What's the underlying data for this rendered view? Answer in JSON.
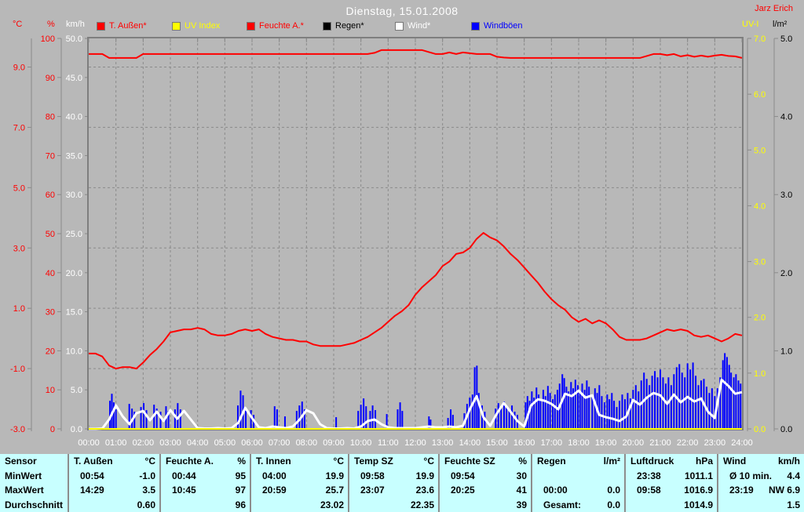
{
  "header": {
    "title": "Dienstag, 15.01.2008",
    "station": "Jarz Erich"
  },
  "legend": {
    "items": [
      {
        "label": "T. Außen*",
        "color": "#ff0000"
      },
      {
        "label": "UV Index",
        "color": "#ffff00"
      },
      {
        "label": "Feuchte A.*",
        "color": "#ff0000"
      },
      {
        "label": "Regen*",
        "color": "#000000"
      },
      {
        "label": "Wind*",
        "color": "#ffffff"
      },
      {
        "label": "Windböen",
        "color": "#0000ff"
      }
    ]
  },
  "chart_data": {
    "type": "line",
    "title": "Dienstag, 15.01.2008",
    "x_range_hours": [
      0,
      24
    ],
    "x_labels": [
      "00:00",
      "01:00",
      "02:00",
      "03:00",
      "04:00",
      "05:00",
      "06:00",
      "07:00",
      "08:00",
      "09:00",
      "10:00",
      "11:00",
      "12:00",
      "13:00",
      "14:00",
      "15:00",
      "16:00",
      "17:00",
      "18:00",
      "19:00",
      "20:00",
      "21:00",
      "22:00",
      "23:00",
      "24:00"
    ],
    "grid": "dashed-gray-hourly-and-2degC",
    "axes": {
      "temp": {
        "unit": "°C",
        "color": "#ff0000",
        "min": -3,
        "max": 9,
        "ticks": [
          "-3.0",
          "-1.0",
          "1.0",
          "3.0",
          "5.0",
          "7.0",
          "9.0"
        ]
      },
      "hum": {
        "unit": "%",
        "color": "#ff0000",
        "min": 0,
        "max": 100,
        "ticks": [
          "0",
          "10",
          "20",
          "30",
          "40",
          "50",
          "60",
          "70",
          "80",
          "90",
          "100"
        ]
      },
      "wind": {
        "unit": "km/h",
        "color": "#ffffff",
        "min": 0,
        "max": 50,
        "ticks": [
          "0.0",
          "5.0",
          "10.0",
          "15.0",
          "20.0",
          "25.0",
          "30.0",
          "35.0",
          "40.0",
          "45.0",
          "50.0"
        ]
      },
      "uv": {
        "unit": "UV-I",
        "color": "#ffff00",
        "min": 0,
        "max": 7,
        "ticks": [
          "0.0",
          "1.0",
          "2.0",
          "3.0",
          "4.0",
          "5.0",
          "6.0",
          "7.0"
        ]
      },
      "rain": {
        "unit": "l/m²",
        "color": "#000000",
        "min": 0,
        "max": 5,
        "ticks": [
          "0.0",
          "1.0",
          "2.0",
          "3.0",
          "4.0",
          "5.0"
        ]
      }
    },
    "series": [
      {
        "label": "Regen*",
        "axis": "rain",
        "color": "#000000",
        "step_h": 24,
        "values": [
          0,
          0
        ]
      },
      {
        "label": "Windböen",
        "axis": "wind",
        "color": "#0000ff",
        "style": "bars",
        "points": [
          [
            0.78,
            3.6
          ],
          [
            0.85,
            4.5
          ],
          [
            0.92,
            3.4
          ],
          [
            1.0,
            2.5
          ],
          [
            1.49,
            3.2
          ],
          [
            1.59,
            2.6
          ],
          [
            1.68,
            2.2
          ],
          [
            1.92,
            2.8
          ],
          [
            2.02,
            3.3
          ],
          [
            2.12,
            2.4
          ],
          [
            2.4,
            3.1
          ],
          [
            2.5,
            2.6
          ],
          [
            2.64,
            2.2
          ],
          [
            2.84,
            2.9
          ],
          [
            2.93,
            2.3
          ],
          [
            3.17,
            2.5
          ],
          [
            3.27,
            3.3
          ],
          [
            3.37,
            2.5
          ],
          [
            5.48,
            3.0
          ],
          [
            5.58,
            4.9
          ],
          [
            5.67,
            4.3
          ],
          [
            5.77,
            2.5
          ],
          [
            5.96,
            2.4
          ],
          [
            6.06,
            1.8
          ],
          [
            6.83,
            2.9
          ],
          [
            6.92,
            2.5
          ],
          [
            7.21,
            1.6
          ],
          [
            7.64,
            2.3
          ],
          [
            7.74,
            3.0
          ],
          [
            7.84,
            3.5
          ],
          [
            7.93,
            2.5
          ],
          [
            9.09,
            1.5
          ],
          [
            9.9,
            2.3
          ],
          [
            10.0,
            3.1
          ],
          [
            10.1,
            3.9
          ],
          [
            10.19,
            2.9
          ],
          [
            10.34,
            2.3
          ],
          [
            10.43,
            3.0
          ],
          [
            10.53,
            2.4
          ],
          [
            10.95,
            1.9
          ],
          [
            11.35,
            2.5
          ],
          [
            11.44,
            3.4
          ],
          [
            11.52,
            2.3
          ],
          [
            12.5,
            1.6
          ],
          [
            12.56,
            1.2
          ],
          [
            13.2,
            1.4
          ],
          [
            13.3,
            2.5
          ],
          [
            13.38,
            1.8
          ],
          [
            13.8,
            2.0
          ],
          [
            13.9,
            3.2
          ],
          [
            14.0,
            4.0
          ],
          [
            14.1,
            4.4
          ],
          [
            14.18,
            7.9
          ],
          [
            14.26,
            8.1
          ],
          [
            14.33,
            4.6
          ],
          [
            14.45,
            3.0
          ],
          [
            14.55,
            2.2
          ],
          [
            14.95,
            2.6
          ],
          [
            15.05,
            3.3
          ],
          [
            15.15,
            2.8
          ],
          [
            15.26,
            3.5
          ],
          [
            15.35,
            2.9
          ],
          [
            15.45,
            2.4
          ],
          [
            15.55,
            3.0
          ],
          [
            15.65,
            2.2
          ],
          [
            15.75,
            1.8
          ],
          [
            16.05,
            3.4
          ],
          [
            16.12,
            4.2
          ],
          [
            16.2,
            3.6
          ],
          [
            16.28,
            4.8
          ],
          [
            16.36,
            4.0
          ],
          [
            16.45,
            5.3
          ],
          [
            16.53,
            4.4
          ],
          [
            16.6,
            3.8
          ],
          [
            16.7,
            5.0
          ],
          [
            16.78,
            4.2
          ],
          [
            16.87,
            5.5
          ],
          [
            16.95,
            4.6
          ],
          [
            17.05,
            3.8
          ],
          [
            17.13,
            4.4
          ],
          [
            17.22,
            5.0
          ],
          [
            17.3,
            5.8
          ],
          [
            17.4,
            7.0
          ],
          [
            17.47,
            6.5
          ],
          [
            17.55,
            5.4
          ],
          [
            17.63,
            4.8
          ],
          [
            17.72,
            6.0
          ],
          [
            17.8,
            5.2
          ],
          [
            17.88,
            6.3
          ],
          [
            17.97,
            5.6
          ],
          [
            18.05,
            4.8
          ],
          [
            18.13,
            5.8
          ],
          [
            18.22,
            5.0
          ],
          [
            18.3,
            6.2
          ],
          [
            18.38,
            5.4
          ],
          [
            18.5,
            4.4
          ],
          [
            18.6,
            5.2
          ],
          [
            18.68,
            4.6
          ],
          [
            18.76,
            5.6
          ],
          [
            18.85,
            4.2
          ],
          [
            18.95,
            3.4
          ],
          [
            19.05,
            4.4
          ],
          [
            19.13,
            3.8
          ],
          [
            19.22,
            4.6
          ],
          [
            19.3,
            3.6
          ],
          [
            19.4,
            2.8
          ],
          [
            19.5,
            3.6
          ],
          [
            19.6,
            4.4
          ],
          [
            19.7,
            3.8
          ],
          [
            19.8,
            4.6
          ],
          [
            19.9,
            3.9
          ],
          [
            20.0,
            5.0
          ],
          [
            20.1,
            5.6
          ],
          [
            20.2,
            4.8
          ],
          [
            20.3,
            6.2
          ],
          [
            20.4,
            7.2
          ],
          [
            20.5,
            6.4
          ],
          [
            20.6,
            5.6
          ],
          [
            20.7,
            6.8
          ],
          [
            20.8,
            7.4
          ],
          [
            20.9,
            6.6
          ],
          [
            21.0,
            7.6
          ],
          [
            21.1,
            6.6
          ],
          [
            21.2,
            5.8
          ],
          [
            21.3,
            6.6
          ],
          [
            21.4,
            5.6
          ],
          [
            21.5,
            7.0
          ],
          [
            21.6,
            7.9
          ],
          [
            21.7,
            8.3
          ],
          [
            21.8,
            7.2
          ],
          [
            21.9,
            6.6
          ],
          [
            22.0,
            8.4
          ],
          [
            22.1,
            7.6
          ],
          [
            22.2,
            8.5
          ],
          [
            22.3,
            6.8
          ],
          [
            22.4,
            5.6
          ],
          [
            22.5,
            6.2
          ],
          [
            22.6,
            6.4
          ],
          [
            22.7,
            5.4
          ],
          [
            22.8,
            4.6
          ],
          [
            22.9,
            5.2
          ],
          [
            23.0,
            4.2
          ],
          [
            23.1,
            5.2
          ],
          [
            23.2,
            6.6
          ],
          [
            23.3,
            8.8
          ],
          [
            23.37,
            9.7
          ],
          [
            23.45,
            9.2
          ],
          [
            23.53,
            8.2
          ],
          [
            23.6,
            7.2
          ],
          [
            23.7,
            6.6
          ],
          [
            23.78,
            7.0
          ],
          [
            23.87,
            6.2
          ],
          [
            23.95,
            5.8
          ]
        ]
      },
      {
        "label": "Wind*",
        "axis": "wind",
        "color": "#ffffff",
        "step_h": 0.25,
        "values": [
          0,
          0,
          0.05,
          1.2,
          3.0,
          1.6,
          0.6,
          2.0,
          2.3,
          1.1,
          2.2,
          1.0,
          2.4,
          1.3,
          2.3,
          1.2,
          0.1,
          0.05,
          0.05,
          0.1,
          0.05,
          0.1,
          0.8,
          2.7,
          1.4,
          0.2,
          0.1,
          0.3,
          0.2,
          0.1,
          0.3,
          1.2,
          2.4,
          2.0,
          0.6,
          0.1,
          0.05,
          0.05,
          0.1,
          0.05,
          0.3,
          1.0,
          1.2,
          0.6,
          0.2,
          0.1,
          0.1,
          0.1,
          0.1,
          0.2,
          0.3,
          0.2,
          0.2,
          0.3,
          0.2,
          0.4,
          2.5,
          4.2,
          1.5,
          0.4,
          2.0,
          3.3,
          2.2,
          1.0,
          0.3,
          3.0,
          3.8,
          3.6,
          3.2,
          2.5,
          4.5,
          4.2,
          4.9,
          4.0,
          4.3,
          1.8,
          1.5,
          1.3,
          1.0,
          1.6,
          3.7,
          3.1,
          4.0,
          4.6,
          4.3,
          3.2,
          4.4,
          3.4,
          4.1,
          3.5,
          3.9,
          2.2,
          1.4,
          6.3,
          5.5,
          4.5,
          4.7
        ]
      },
      {
        "label": "UV Index",
        "axis": "uv",
        "color": "#ffff00",
        "step_h": 24,
        "values": [
          0,
          0
        ]
      },
      {
        "label": "T. Außen*",
        "axis": "temp",
        "color": "#ff0000",
        "step_h": 0.25,
        "values": [
          -0.5,
          -0.5,
          -0.6,
          -0.9,
          -1.0,
          -0.95,
          -0.95,
          -1.0,
          -0.8,
          -0.55,
          -0.35,
          -0.1,
          0.2,
          0.25,
          0.3,
          0.3,
          0.35,
          0.3,
          0.15,
          0.1,
          0.1,
          0.15,
          0.25,
          0.3,
          0.25,
          0.3,
          0.15,
          0.05,
          0.0,
          -0.05,
          -0.05,
          -0.1,
          -0.1,
          -0.2,
          -0.25,
          -0.25,
          -0.25,
          -0.25,
          -0.2,
          -0.15,
          -0.05,
          0.05,
          0.2,
          0.35,
          0.55,
          0.75,
          0.9,
          1.1,
          1.45,
          1.7,
          1.9,
          2.1,
          2.4,
          2.55,
          2.8,
          2.85,
          3.0,
          3.3,
          3.5,
          3.35,
          3.25,
          3.05,
          2.8,
          2.6,
          2.35,
          2.1,
          1.85,
          1.55,
          1.3,
          1.1,
          0.95,
          0.7,
          0.55,
          0.65,
          0.5,
          0.6,
          0.5,
          0.3,
          0.05,
          -0.05,
          -0.05,
          -0.05,
          0.0,
          0.1,
          0.2,
          0.3,
          0.25,
          0.3,
          0.25,
          0.1,
          0.05,
          0.1,
          0.0,
          -0.1,
          0.0,
          0.15,
          0.1
        ]
      },
      {
        "label": "Feuchte A.*",
        "axis": "hum",
        "color": "#ff0000",
        "step_h": 0.25,
        "values": [
          96,
          96,
          96,
          95,
          95,
          95,
          95,
          95,
          96,
          96,
          96,
          96,
          96,
          96,
          96,
          96,
          96,
          96,
          96,
          96,
          96,
          96,
          96,
          96,
          96,
          96,
          96,
          96,
          96,
          96,
          96,
          96,
          96,
          96,
          96,
          96,
          96,
          96,
          96,
          96,
          96,
          96,
          96.3,
          97,
          97,
          97,
          97,
          97,
          97,
          97,
          96.5,
          96,
          96,
          96.4,
          96,
          96.4,
          96.2,
          96,
          96,
          96,
          95.3,
          95.1,
          95,
          95,
          95,
          95,
          95,
          95,
          95,
          95,
          95,
          95,
          95,
          95,
          95,
          95,
          95,
          95,
          95,
          95,
          95,
          95,
          95.5,
          96,
          96,
          95.7,
          96,
          95.4,
          95.7,
          95.3,
          95.6,
          95.3,
          95.6,
          95.8,
          95.5,
          95.4,
          95
        ]
      }
    ]
  },
  "table": {
    "row_labels": [
      "Sensor",
      "MinWert",
      "MaxWert",
      "Durchschnitt"
    ],
    "columns": [
      {
        "name": "T. Außen",
        "unit": "°C",
        "rows": [
          [
            "00:54",
            "-1.0"
          ],
          [
            "14:29",
            "3.5"
          ],
          [
            "",
            "0.60"
          ]
        ]
      },
      {
        "name": "Feuchte A.",
        "unit": "%",
        "rows": [
          [
            "00:44",
            "95"
          ],
          [
            "10:45",
            "97"
          ],
          [
            "",
            "96"
          ]
        ]
      },
      {
        "name": "T. Innen",
        "unit": "°C",
        "rows": [
          [
            "04:00",
            "19.9"
          ],
          [
            "20:59",
            "25.7"
          ],
          [
            "",
            "23.02"
          ]
        ]
      },
      {
        "name": "Temp SZ",
        "unit": "°C",
        "rows": [
          [
            "09:58",
            "19.9"
          ],
          [
            "23:07",
            "23.6"
          ],
          [
            "",
            "22.35"
          ]
        ]
      },
      {
        "name": "Feuchte SZ",
        "unit": "%",
        "rows": [
          [
            "09:54",
            "30"
          ],
          [
            "20:25",
            "41"
          ],
          [
            "",
            "39"
          ]
        ]
      },
      {
        "name": "Regen",
        "unit": "l/m²",
        "rows": [
          [
            "",
            ""
          ],
          [
            "00:00",
            "0.0"
          ],
          [
            "Gesamt:",
            "0.0"
          ]
        ]
      },
      {
        "name": "Luftdruck",
        "unit": "hPa",
        "rows": [
          [
            "23:38",
            "1011.1"
          ],
          [
            "09:58",
            "1016.9"
          ],
          [
            "",
            "1014.9"
          ]
        ]
      },
      {
        "name": "Wind",
        "unit": "km/h",
        "rows": [
          [
            "Ø 10 min.",
            "4.4"
          ],
          [
            "23:19",
            "NW 6.9"
          ],
          [
            "",
            "1.5"
          ]
        ]
      }
    ]
  }
}
